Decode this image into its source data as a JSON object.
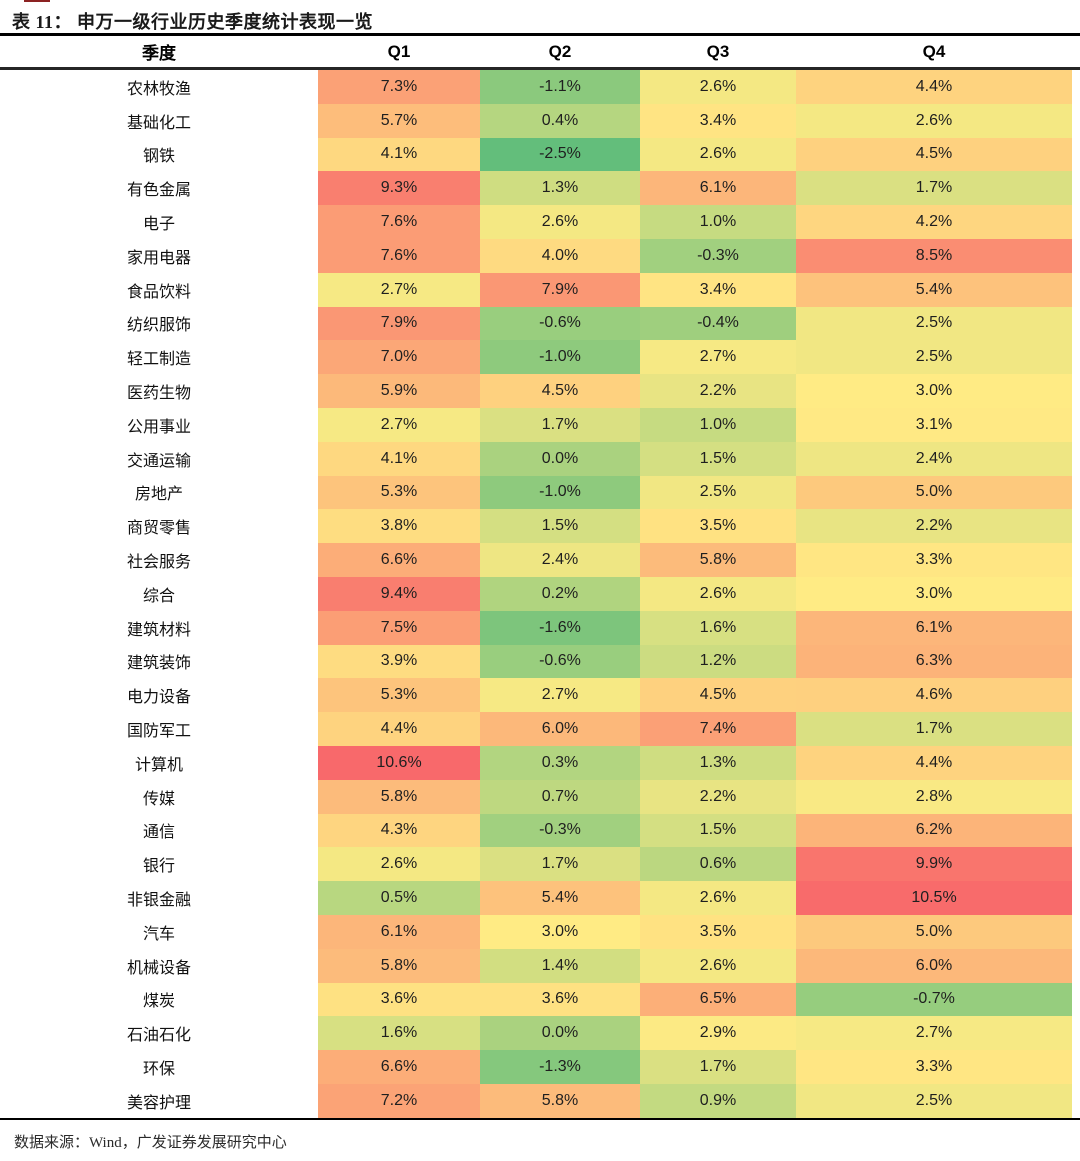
{
  "chart_data": {
    "type": "heatmap",
    "title": "表 11：  申万一级行业历史季度统计表现一览",
    "row_header": "季度",
    "columns": [
      "Q1",
      "Q2",
      "Q3",
      "Q4"
    ],
    "rows": [
      "农林牧渔",
      "基础化工",
      "钢铁",
      "有色金属",
      "电子",
      "家用电器",
      "食品饮料",
      "纺织服饰",
      "轻工制造",
      "医药生物",
      "公用事业",
      "交通运输",
      "房地产",
      "商贸零售",
      "社会服务",
      "综合",
      "建筑材料",
      "建筑装饰",
      "电力设备",
      "国防军工",
      "计算机",
      "传媒",
      "通信",
      "银行",
      "非银金融",
      "汽车",
      "机械设备",
      "煤炭",
      "石油石化",
      "环保",
      "美容护理"
    ],
    "values": [
      [
        7.3,
        -1.1,
        2.6,
        4.4
      ],
      [
        5.7,
        0.4,
        3.4,
        2.6
      ],
      [
        4.1,
        -2.5,
        2.6,
        4.5
      ],
      [
        9.3,
        1.3,
        6.1,
        1.7
      ],
      [
        7.6,
        2.6,
        1.0,
        4.2
      ],
      [
        7.6,
        4.0,
        -0.3,
        8.5
      ],
      [
        2.7,
        7.9,
        3.4,
        5.4
      ],
      [
        7.9,
        -0.6,
        -0.4,
        2.5
      ],
      [
        7.0,
        -1.0,
        2.7,
        2.5
      ],
      [
        5.9,
        4.5,
        2.2,
        3.0
      ],
      [
        2.7,
        1.7,
        1.0,
        3.1
      ],
      [
        4.1,
        0.0,
        1.5,
        2.4
      ],
      [
        5.3,
        -1.0,
        2.5,
        5.0
      ],
      [
        3.8,
        1.5,
        3.5,
        2.2
      ],
      [
        6.6,
        2.4,
        5.8,
        3.3
      ],
      [
        9.4,
        0.2,
        2.6,
        3.0
      ],
      [
        7.5,
        -1.6,
        1.6,
        6.1
      ],
      [
        3.9,
        -0.6,
        1.2,
        6.3
      ],
      [
        5.3,
        2.7,
        4.5,
        4.6
      ],
      [
        4.4,
        6.0,
        7.4,
        1.7
      ],
      [
        10.6,
        0.3,
        1.3,
        4.4
      ],
      [
        5.8,
        0.7,
        2.2,
        2.8
      ],
      [
        4.3,
        -0.3,
        1.5,
        6.2
      ],
      [
        2.6,
        1.7,
        0.6,
        9.9
      ],
      [
        0.5,
        5.4,
        2.6,
        10.5
      ],
      [
        6.1,
        3.0,
        3.5,
        5.0
      ],
      [
        5.8,
        1.4,
        2.6,
        6.0
      ],
      [
        3.6,
        3.6,
        6.5,
        -0.7
      ],
      [
        1.6,
        0.0,
        2.9,
        2.7
      ],
      [
        6.6,
        -1.3,
        1.7,
        3.3
      ],
      [
        7.2,
        5.8,
        0.9,
        2.5
      ]
    ],
    "value_format": "one_decimal_percent",
    "color_scale": {
      "min_value": -2.5,
      "mid_value": 3.0,
      "max_value": 10.6,
      "min_color": "#63be7b",
      "mid_color": "#ffeb84",
      "max_color": "#f8696b"
    },
    "layout_hints": {
      "grid": "off",
      "legend": "none"
    }
  },
  "footer": {
    "source": "数据来源：Wind，广发证券发展研究中心"
  }
}
